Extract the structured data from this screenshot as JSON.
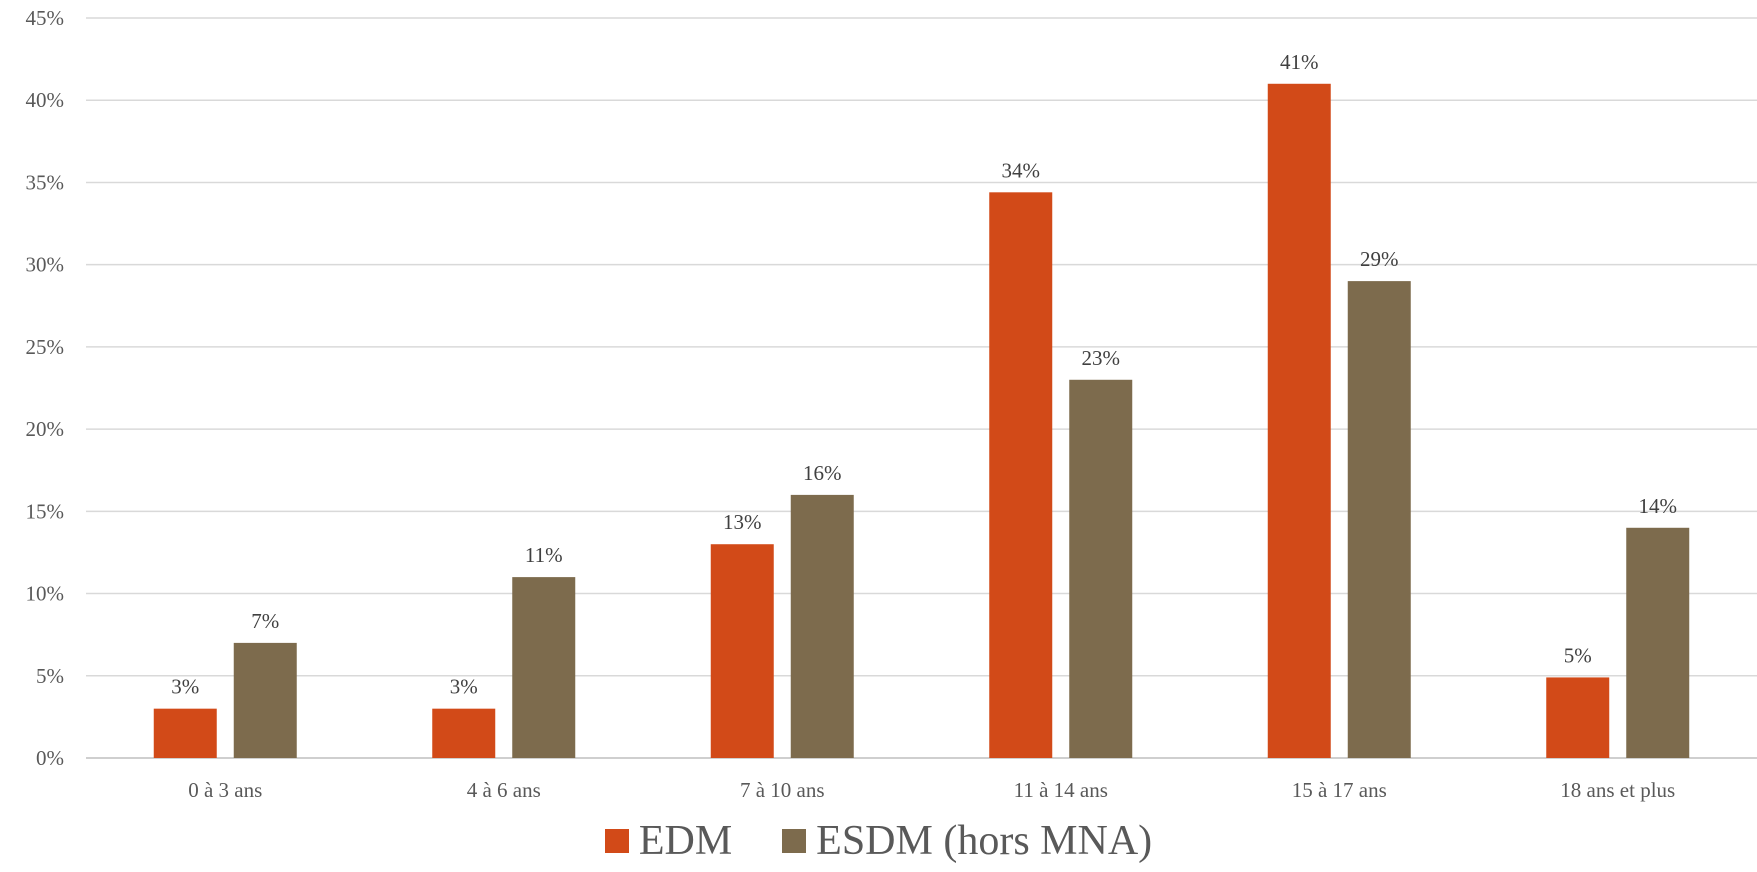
{
  "chart_data": {
    "type": "bar",
    "title": "",
    "xlabel": "",
    "ylabel": "",
    "ylim": [
      0,
      45
    ],
    "yticks": [
      "0%",
      "5%",
      "10%",
      "15%",
      "20%",
      "25%",
      "30%",
      "35%",
      "40%",
      "45%"
    ],
    "categories": [
      "0 à 3 ans",
      "4 à 6 ans",
      "7 à 10 ans",
      "11 à 14 ans",
      "15 à 17 ans",
      "18 ans et plus"
    ],
    "series": [
      {
        "name": "EDM",
        "color": "#D24A18",
        "values": [
          3,
          3,
          13,
          34.4,
          41,
          4.9
        ],
        "labels": [
          "3%",
          "3%",
          "13%",
          "34%",
          "41%",
          "5%"
        ]
      },
      {
        "name": "ESDM (hors MNA)",
        "color": "#7D6B4D",
        "values": [
          7,
          11,
          16,
          23,
          29,
          14
        ],
        "labels": [
          "7%",
          "11%",
          "16%",
          "23%",
          "29%",
          "14%"
        ]
      }
    ],
    "grid": true,
    "legend_position": "bottom"
  }
}
